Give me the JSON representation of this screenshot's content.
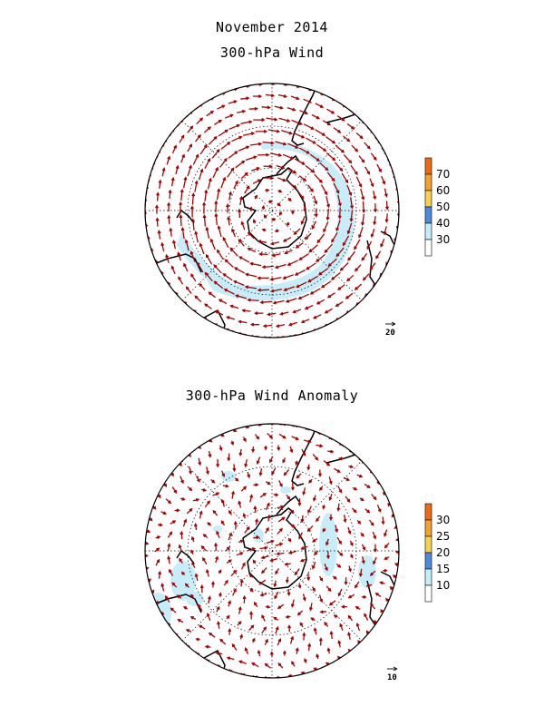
{
  "title_month": "November 2014",
  "panels": [
    {
      "title": "300-hPa Wind",
      "colorbar": {
        "ticks": [
          "30",
          "40",
          "50",
          "60",
          "70"
        ],
        "colors": [
          "#ffffff",
          "#c6eefa",
          "#4a8de0",
          "#f6d04f",
          "#f5a12a",
          "#f26a10"
        ]
      },
      "reference_vector": "20"
    },
    {
      "title": "300-hPa Wind Anomaly",
      "colorbar": {
        "ticks": [
          "10",
          "15",
          "20",
          "25",
          "30"
        ],
        "colors": [
          "#ffffff",
          "#c6eefa",
          "#4a8de0",
          "#f6d04f",
          "#f5a12a",
          "#f26a10"
        ]
      },
      "reference_vector": "10"
    }
  ],
  "style": {
    "arrow_color": "#aa0000",
    "shade_color": "#c6eefa"
  }
}
